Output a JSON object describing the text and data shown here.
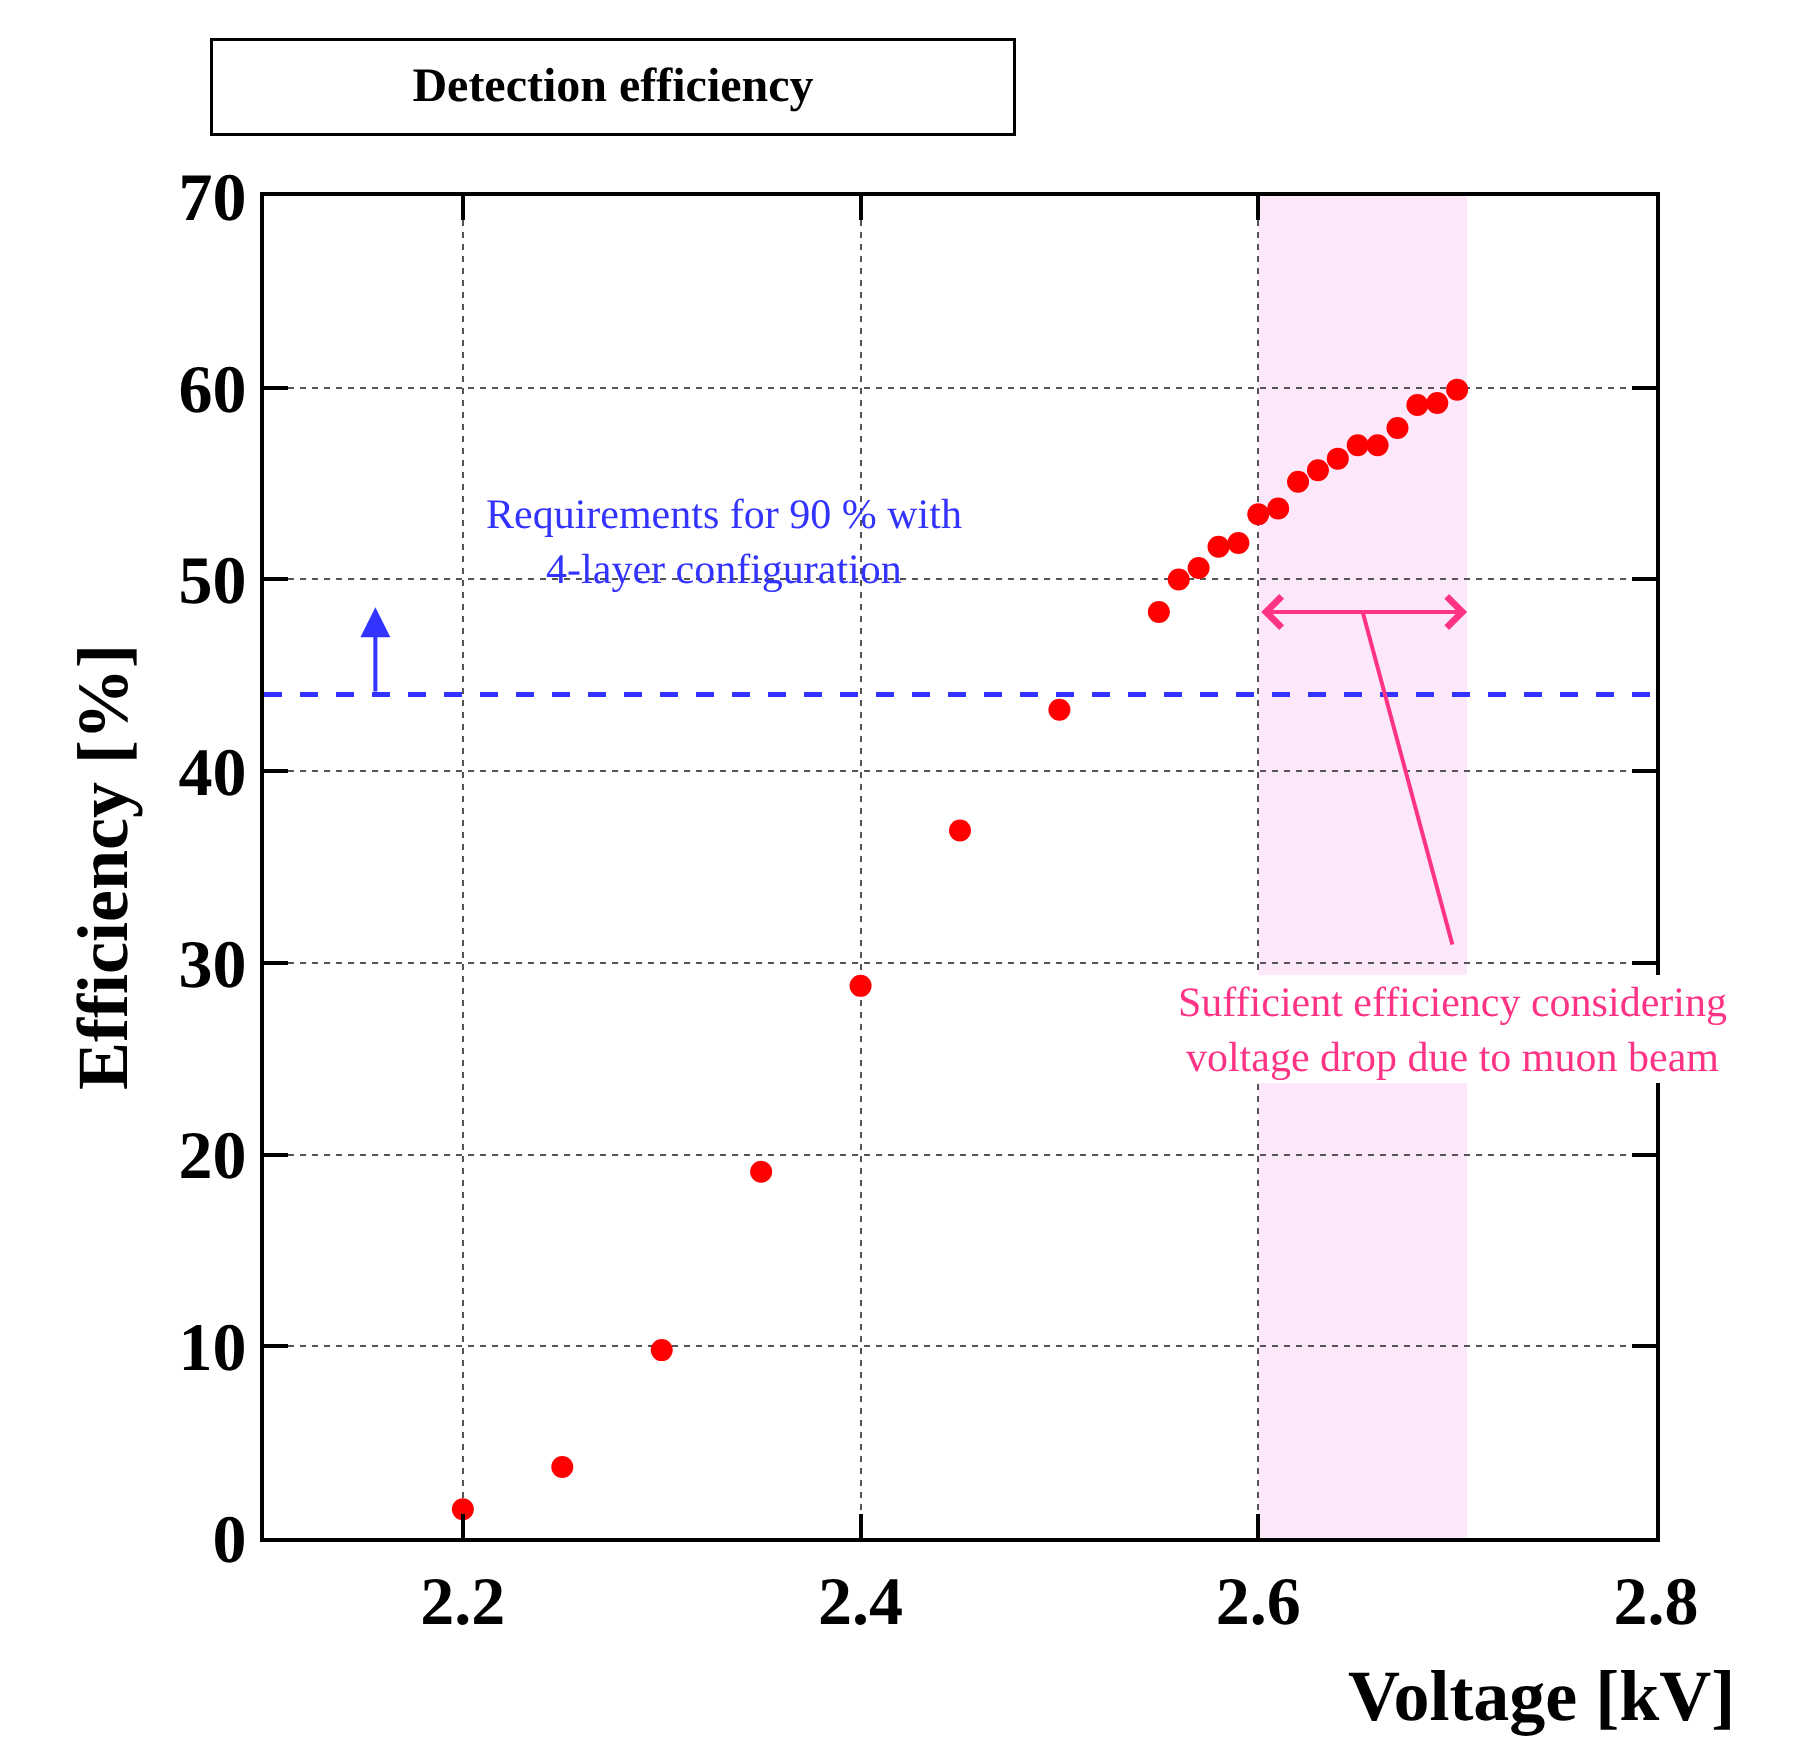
{
  "chart_data": {
    "type": "scatter",
    "title": "Detection efficiency",
    "xlabel": "Voltage [kV]",
    "ylabel": "Efficiency [%]",
    "x": [
      2.2,
      2.25,
      2.3,
      2.35,
      2.4,
      2.45,
      2.5,
      2.55,
      2.56,
      2.57,
      2.58,
      2.59,
      2.6,
      2.61,
      2.62,
      2.63,
      2.64,
      2.65,
      2.66,
      2.67,
      2.68,
      2.69,
      2.7
    ],
    "series": [
      {
        "color": "#ff0000",
        "values": [
          1.5,
          3.7,
          9.8,
          19.1,
          28.8,
          36.9,
          43.2,
          48.3,
          50.0,
          50.6,
          51.7,
          51.9,
          53.4,
          53.7,
          55.1,
          55.7,
          56.3,
          57.0,
          57.0,
          57.9,
          59.1,
          59.2,
          59.9
        ]
      }
    ],
    "xlim": [
      2.1,
      2.8
    ],
    "ylim": [
      0,
      70
    ],
    "xticks": [
      2.2,
      2.4,
      2.6,
      2.8
    ],
    "yticks": [
      0,
      10,
      20,
      30,
      40,
      50,
      60,
      70
    ],
    "grid": true,
    "marker": "circle",
    "legend": false,
    "ref_lines": [
      {
        "axis": "y",
        "value": 44,
        "label": "Requirements for 90 % with\n4-layer configuration",
        "color": "#3333ff",
        "line_style": "dashed"
      }
    ],
    "bands": [
      {
        "axis": "x",
        "from": 2.6,
        "to": 2.705,
        "label": "Sufficient efficiency considering\nvoltage drop due to muon beam",
        "color": "#fde8fb"
      }
    ]
  }
}
